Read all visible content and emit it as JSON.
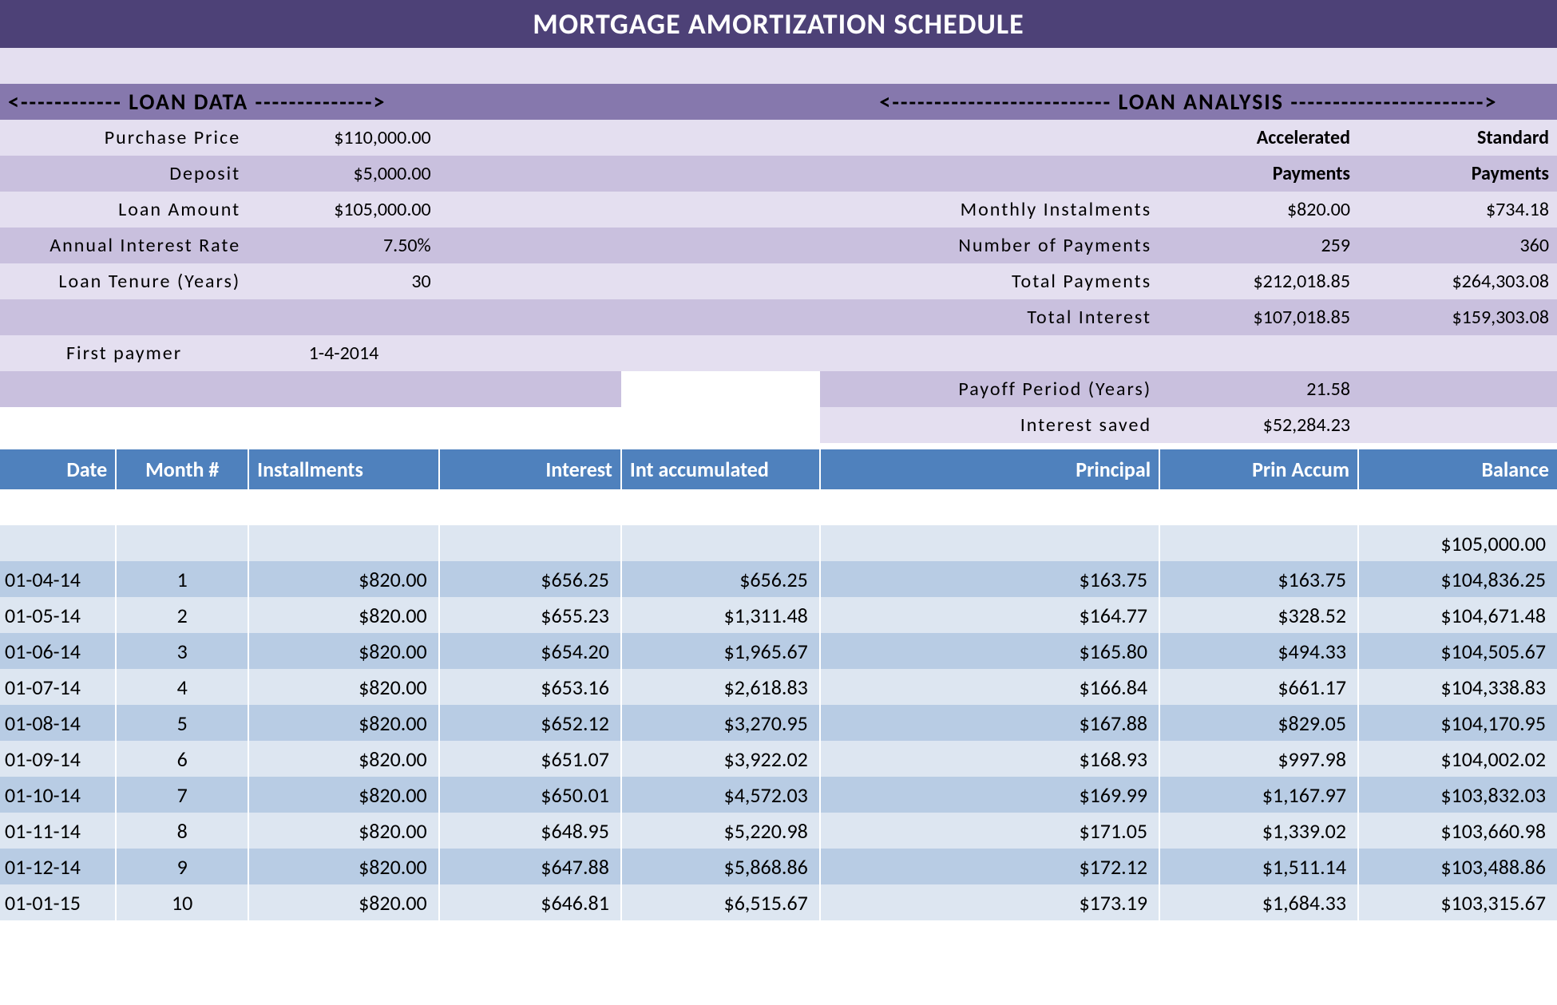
{
  "title": "MORTGAGE AMORTIZATION SCHEDULE",
  "loan_data": {
    "section_label": "<------------  LOAN DATA  -------------->",
    "rows": [
      {
        "label": "Purchase Price",
        "value": "$110,000.00"
      },
      {
        "label": "Deposit",
        "value": "$5,000.00"
      },
      {
        "label": "Loan Amount",
        "value": "$105,000.00"
      },
      {
        "label": "Annual Interest Rate",
        "value": "7.50%"
      },
      {
        "label": "Loan Tenure (Years)",
        "value": "30"
      },
      {
        "label": "",
        "value": ""
      },
      {
        "label": "First paymer",
        "value": "1-4-2014"
      }
    ]
  },
  "loan_analysis": {
    "section_label": "<--------------------------  LOAN ANALYSIS  ----------------------->",
    "col_headers": {
      "accel": "Accelerated",
      "std": "Standard",
      "pay": "Payments"
    },
    "rows": [
      {
        "label": "Monthly Instalments",
        "accel": "$820.00",
        "std": "$734.18"
      },
      {
        "label": "Number of Payments",
        "accel": "259",
        "std": "360"
      },
      {
        "label": "Total Payments",
        "accel": "$212,018.85",
        "std": "$264,303.08"
      },
      {
        "label": "Total Interest",
        "accel": "$107,018.85",
        "std": "$159,303.08"
      },
      {
        "label": "",
        "accel": "",
        "std": ""
      },
      {
        "label": "Payoff Period (Years)",
        "accel": "21.58",
        "std": ""
      },
      {
        "label": "Interest saved",
        "accel": "$52,284.23",
        "std": ""
      }
    ]
  },
  "amort": {
    "headers": {
      "date": "Date",
      "month": "Month #",
      "inst": "Installments",
      "int": "Interest",
      "intacc": "Int accumulated",
      "prin": "Principal",
      "paccum": "Prin Accum",
      "bal": "Balance"
    },
    "initial_balance": "$105,000.00",
    "rows": [
      {
        "date": "01-04-14",
        "month": "1",
        "inst": "$820.00",
        "int": "$656.25",
        "intacc": "$656.25",
        "prin": "$163.75",
        "paccum": "$163.75",
        "bal": "$104,836.25"
      },
      {
        "date": "01-05-14",
        "month": "2",
        "inst": "$820.00",
        "int": "$655.23",
        "intacc": "$1,311.48",
        "prin": "$164.77",
        "paccum": "$328.52",
        "bal": "$104,671.48"
      },
      {
        "date": "01-06-14",
        "month": "3",
        "inst": "$820.00",
        "int": "$654.20",
        "intacc": "$1,965.67",
        "prin": "$165.80",
        "paccum": "$494.33",
        "bal": "$104,505.67"
      },
      {
        "date": "01-07-14",
        "month": "4",
        "inst": "$820.00",
        "int": "$653.16",
        "intacc": "$2,618.83",
        "prin": "$166.84",
        "paccum": "$661.17",
        "bal": "$104,338.83"
      },
      {
        "date": "01-08-14",
        "month": "5",
        "inst": "$820.00",
        "int": "$652.12",
        "intacc": "$3,270.95",
        "prin": "$167.88",
        "paccum": "$829.05",
        "bal": "$104,170.95"
      },
      {
        "date": "01-09-14",
        "month": "6",
        "inst": "$820.00",
        "int": "$651.07",
        "intacc": "$3,922.02",
        "prin": "$168.93",
        "paccum": "$997.98",
        "bal": "$104,002.02"
      },
      {
        "date": "01-10-14",
        "month": "7",
        "inst": "$820.00",
        "int": "$650.01",
        "intacc": "$4,572.03",
        "prin": "$169.99",
        "paccum": "$1,167.97",
        "bal": "$103,832.03"
      },
      {
        "date": "01-11-14",
        "month": "8",
        "inst": "$820.00",
        "int": "$648.95",
        "intacc": "$5,220.98",
        "prin": "$171.05",
        "paccum": "$1,339.02",
        "bal": "$103,660.98"
      },
      {
        "date": "01-12-14",
        "month": "9",
        "inst": "$820.00",
        "int": "$647.88",
        "intacc": "$5,868.86",
        "prin": "$172.12",
        "paccum": "$1,511.14",
        "bal": "$103,488.86"
      },
      {
        "date": "01-01-15",
        "month": "10",
        "inst": "$820.00",
        "int": "$646.81",
        "intacc": "$6,515.67",
        "prin": "$173.19",
        "paccum": "$1,684.33",
        "bal": "$103,315.67"
      }
    ]
  },
  "colors": {
    "title_bg": "#4d4177",
    "section_hdr_bg": "#8678ad",
    "lavender_light": "#e4dff0",
    "lavender_mid": "#c9c0de",
    "amort_hdr_bg": "#4f81bd",
    "blue_row_a": "#dde6f1",
    "blue_row_b": "#b8cce4"
  }
}
